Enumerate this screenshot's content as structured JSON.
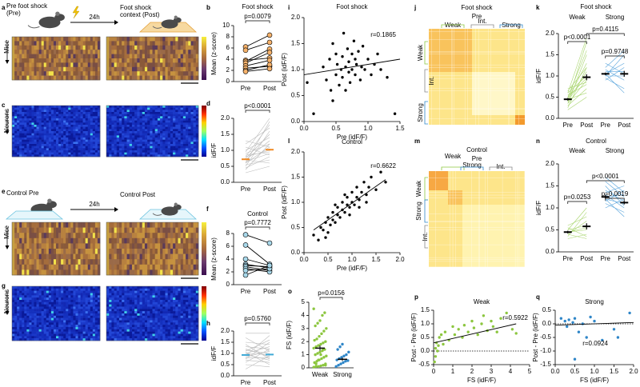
{
  "chart_data": [
    {
      "type": "paired",
      "panel_label": "b",
      "title": "Foot shock",
      "ylabel": "Mean (z-score)",
      "categories": [
        "Pre",
        "Post"
      ],
      "ylim": [
        0,
        10
      ],
      "yticks": [
        0,
        2,
        4,
        6,
        8,
        10
      ],
      "markers": true,
      "series": [
        {
          "color": "#f6b26b",
          "line_color": "#000000",
          "pre": [
            6.2,
            5.6,
            3.8,
            3.6,
            3.3,
            2.8,
            2.4,
            2.0,
            1.8
          ],
          "post": [
            8.3,
            7.0,
            4.2,
            5.8,
            5.2,
            3.8,
            2.7,
            3.0,
            2.3
          ]
        }
      ],
      "annotations": [
        "p=0.0079"
      ]
    },
    {
      "type": "paired",
      "panel_label": "d",
      "ylabel": "idF/F",
      "categories": [
        "Pre",
        "Post"
      ],
      "ylim": [
        0,
        2
      ],
      "yticks": [
        {
          "value": 0,
          "label": "0.0"
        },
        0.5,
        {
          "value": 1,
          "label": "1.0"
        },
        1.5,
        {
          "value": 2,
          "label": "2.0"
        }
      ],
      "markers": false,
      "series": [
        {
          "color": "#f08a24",
          "line_color": "#bbbbbb",
          "pre": [
            0.3,
            0.4,
            0.45,
            0.5,
            0.55,
            0.6,
            0.6,
            0.65,
            0.7,
            0.7,
            0.75,
            0.8,
            0.8,
            0.85,
            0.9,
            0.95,
            1.0,
            1.1,
            1.2,
            1.3
          ],
          "post": [
            0.5,
            1.2,
            0.8,
            1.6,
            0.7,
            1.1,
            1.9,
            0.9,
            1.3,
            0.6,
            1.5,
            1.0,
            1.8,
            0.95,
            1.2,
            2.0,
            1.4,
            0.85,
            1.7,
            1.1
          ],
          "mean": [
            0.72,
            1.02
          ],
          "sem": [
            0.02,
            0.03
          ]
        }
      ],
      "annotations": [
        "p<0.0001"
      ]
    },
    {
      "type": "paired",
      "panel_label": "f",
      "title": "Control",
      "ylabel": "Mean (z-score)",
      "categories": [
        "Pre",
        "Post"
      ],
      "ylim": [
        0,
        8
      ],
      "yticks": [
        0,
        2,
        4,
        6,
        8
      ],
      "markers": true,
      "series": [
        {
          "color": "#a8d8ea",
          "line_color": "#000000",
          "pre": [
            7.8,
            6.2,
            4.0,
            3.2,
            3.0,
            2.8,
            2.5,
            2.2,
            1.5
          ],
          "post": [
            6.5,
            3.2,
            3.0,
            2.6,
            2.8,
            2.2,
            2.0,
            2.5,
            3.0
          ]
        }
      ],
      "annotations": [
        "p=0.7772"
      ]
    },
    {
      "type": "paired",
      "panel_label": "h",
      "ylabel": "idF/F",
      "categories": [
        "Pre",
        "Post"
      ],
      "ylim": [
        0,
        2
      ],
      "yticks": [
        {
          "value": 0,
          "label": "0.0"
        },
        0.5,
        {
          "value": 1,
          "label": "1.0"
        },
        1.5,
        {
          "value": 2,
          "label": "2.0"
        }
      ],
      "markers": false,
      "series": [
        {
          "color": "#3fa9d6",
          "line_color": "#bbbbbb",
          "pre": [
            0.3,
            0.5,
            0.6,
            0.7,
            0.75,
            0.8,
            0.85,
            0.9,
            0.95,
            1.0,
            1.0,
            1.05,
            1.1,
            1.15,
            1.2,
            1.3,
            1.4,
            1.5,
            1.7,
            1.9
          ],
          "post": [
            0.9,
            0.4,
            1.2,
            0.6,
            1.5,
            0.8,
            1.1,
            1.8,
            0.7,
            1.3,
            0.95,
            0.5,
            1.6,
            1.0,
            0.85,
            1.2,
            0.75,
            1.4,
            1.1,
            1.9
          ],
          "mean": [
            0.93,
            0.95
          ],
          "sem": [
            0.02,
            0.02
          ]
        }
      ],
      "annotations": [
        "p=0.5760"
      ]
    },
    {
      "type": "scatter",
      "panel_label": "i",
      "title": "Foot shock",
      "xlabel": "Pre (idF/F)",
      "ylabel": "Post (idF/F)",
      "color": "#000000",
      "x": [
        0.15,
        0.3,
        0.35,
        0.4,
        0.42,
        0.45,
        0.5,
        0.5,
        0.52,
        0.55,
        0.58,
        0.6,
        0.6,
        0.62,
        0.65,
        0.65,
        0.68,
        0.7,
        0.7,
        0.72,
        0.75,
        0.75,
        0.78,
        0.8,
        0.8,
        0.82,
        0.85,
        0.88,
        0.9,
        0.92,
        0.95,
        1.0,
        1.05,
        1.1,
        1.15,
        1.2,
        1.3,
        1.42,
        0.05,
        0.45
      ],
      "y": [
        0.15,
        1.05,
        0.8,
        1.2,
        0.6,
        1.5,
        0.9,
        1.3,
        1.1,
        0.7,
        1.0,
        1.25,
        0.85,
        1.7,
        1.05,
        0.6,
        1.4,
        0.95,
        1.15,
        0.75,
        1.3,
        1.0,
        1.55,
        0.9,
        1.2,
        1.1,
        1.35,
        0.8,
        1.05,
        1.45,
        1.0,
        1.2,
        0.9,
        1.1,
        1.3,
        1.0,
        0.85,
        0.15,
        0.75,
        0.4
      ],
      "fit_x": [
        0,
        1.5
      ],
      "fit_y": [
        0.9,
        1.2
      ],
      "xlim": [
        0,
        1.5
      ],
      "xticks": [
        {
          "value": 0,
          "label": "0.0"
        },
        0.5,
        {
          "value": 1,
          "label": "1.0"
        },
        1.5
      ],
      "ylim": [
        0,
        2
      ],
      "yticks": [
        {
          "value": 0,
          "label": "0.0"
        },
        0.5,
        {
          "value": 1,
          "label": "1.0"
        },
        1.5,
        {
          "value": 2,
          "label": "2.0"
        }
      ],
      "annotations": [
        "r=0.1865"
      ]
    },
    {
      "type": "scatter",
      "panel_label": "l",
      "title": "Control",
      "xlabel": "Pre (idF/F)",
      "ylabel": "Post (idF/F)",
      "color": "#000000",
      "x": [
        0.2,
        0.3,
        0.35,
        0.4,
        0.45,
        0.5,
        0.5,
        0.55,
        0.6,
        0.6,
        0.65,
        0.7,
        0.7,
        0.75,
        0.8,
        0.8,
        0.85,
        0.9,
        0.9,
        0.95,
        1.0,
        1.0,
        1.05,
        1.1,
        1.1,
        1.15,
        1.2,
        1.25,
        1.3,
        1.35,
        1.4,
        1.5,
        1.6,
        1.7,
        0.65,
        0.85,
        0.95,
        1.15,
        0.45,
        1.3
      ],
      "y": [
        0.35,
        0.25,
        0.5,
        0.45,
        0.6,
        0.4,
        0.7,
        0.55,
        0.65,
        0.8,
        0.6,
        0.75,
        0.9,
        0.7,
        0.85,
        1.0,
        0.8,
        0.95,
        1.1,
        0.9,
        1.0,
        1.2,
        0.95,
        1.1,
        1.3,
        1.05,
        1.2,
        1.4,
        1.15,
        1.3,
        1.5,
        1.25,
        1.6,
        1.4,
        0.95,
        1.15,
        0.75,
        0.9,
        0.3,
        1.0
      ],
      "fit_x": [
        0.2,
        1.7
      ],
      "fit_y": [
        0.45,
        1.45
      ],
      "xlim": [
        0,
        2
      ],
      "xticks": [
        {
          "value": 0,
          "label": "0.0"
        },
        0.5,
        {
          "value": 1,
          "label": "1.0"
        },
        1.5,
        {
          "value": 2,
          "label": "2.0"
        }
      ],
      "ylim": [
        0,
        2
      ],
      "yticks": [
        {
          "value": 0,
          "label": "0.0"
        },
        0.5,
        {
          "value": 1,
          "label": "1.0"
        },
        1.5,
        {
          "value": 2,
          "label": "2.0"
        }
      ],
      "annotations": [
        "r=0.6622"
      ]
    },
    {
      "type": "strip",
      "panel_label": "o",
      "ylabel": "FS (idF/F)",
      "categories": [
        "Weak",
        "Strong"
      ],
      "ylim": [
        0,
        5
      ],
      "yticks": [
        0,
        1,
        2,
        3,
        4,
        5
      ],
      "series": [
        {
          "color": "#8cc63f",
          "values": [
            0.05,
            0.1,
            0.1,
            0.15,
            0.2,
            0.3,
            0.4,
            0.5,
            0.6,
            0.7,
            0.8,
            0.9,
            1.0,
            1.1,
            1.2,
            1.3,
            1.4,
            1.5,
            1.6,
            1.7,
            1.8,
            1.9,
            2.0,
            2.1,
            2.2,
            2.4,
            2.6,
            2.8,
            3.0,
            3.2,
            3.4,
            3.6,
            4.0,
            4.2,
            4.5,
            0.3,
            0.6,
            1.0,
            1.4,
            0.2
          ],
          "mean": 1.5,
          "sem": 0.2
        },
        {
          "color": "#2f86c8",
          "values": [
            0.1,
            0.2,
            0.3,
            0.4,
            0.5,
            0.55,
            0.6,
            0.7,
            0.8,
            0.9,
            1.0,
            1.2,
            1.4,
            1.6,
            1.8
          ],
          "mean": 0.65,
          "sem": 0.12
        }
      ],
      "annotations": [
        "p=0.0156"
      ]
    },
    {
      "type": "scatter",
      "panel_label": "p",
      "title": "Weak",
      "xlabel": "FS (idF/F)",
      "ylabel": "Post - Pre (idF/F)",
      "color": "#8cc63f",
      "zero_line": true,
      "x": [
        0.05,
        0.1,
        0.1,
        0.15,
        0.2,
        0.25,
        0.3,
        0.4,
        0.5,
        0.6,
        0.8,
        1.0,
        1.1,
        1.3,
        1.5,
        1.6,
        1.8,
        2.0,
        2.1,
        2.3,
        2.5,
        2.6,
        2.8,
        3.0,
        3.1,
        3.3,
        3.5,
        3.8,
        4.1,
        4.3
      ],
      "y": [
        -0.4,
        -0.2,
        0.1,
        0.3,
        0.0,
        0.2,
        0.5,
        0.6,
        0.25,
        0.7,
        0.4,
        0.9,
        0.6,
        0.8,
        0.5,
        0.95,
        0.7,
        1.1,
        0.85,
        0.6,
        1.0,
        1.3,
        0.75,
        1.1,
        0.9,
        0.7,
        1.2,
        1.4,
        0.8,
        0.65
      ],
      "fit_x": [
        0,
        4.3
      ],
      "fit_y": [
        0.3,
        1.0
      ],
      "xlim": [
        0,
        5
      ],
      "xticks": [
        0,
        1,
        2,
        3,
        4,
        5
      ],
      "ylim": [
        -0.5,
        1.5
      ],
      "yticks": [
        -0.5,
        {
          "value": 0,
          "label": "0.0"
        },
        0.5,
        {
          "value": 1,
          "label": "1.0"
        },
        1.5
      ],
      "annotations": [
        "r=0.5922"
      ]
    },
    {
      "type": "scatter",
      "panel_label": "q",
      "title": "Strong",
      "xlabel": "FS (idF/F)",
      "ylabel": "Post - Pre (idF/F)",
      "color": "#2f86c8",
      "zero_line": true,
      "x": [
        0.15,
        0.25,
        0.3,
        0.35,
        0.45,
        0.5,
        0.5,
        0.6,
        0.7,
        0.8,
        0.9,
        1.0,
        1.2,
        1.5,
        1.6,
        1.9
      ],
      "y": [
        0.2,
        0.1,
        -0.1,
        0.15,
        0.05,
        -1.3,
        0.2,
        -0.3,
        0.0,
        -0.5,
        0.25,
        0.1,
        -0.6,
        -0.2,
        -0.5,
        0.4
      ],
      "fit_x": [
        0,
        2
      ],
      "fit_y": [
        -0.05,
        0.05
      ],
      "xlim": [
        0,
        2
      ],
      "xticks": [
        {
          "value": 0,
          "label": "0.0"
        },
        0.5,
        {
          "value": 1,
          "label": "1.0"
        },
        1.5,
        {
          "value": 2,
          "label": "2.0"
        }
      ],
      "ylim": [
        -1.5,
        0.5
      ],
      "yticks": [
        {
          "value": -1.5,
          "label": "-1.5"
        },
        {
          "value": -1,
          "label": "-1.0"
        },
        -0.5,
        {
          "value": 0,
          "label": "0.0"
        },
        0.5
      ],
      "annotations": [
        "r=0.0924"
      ]
    },
    {
      "type": "paired",
      "panel_label": "k",
      "title": "Foot shock",
      "ylabel": "idF/F",
      "categories": [
        "Pre",
        "Post",
        "Pre",
        "Post"
      ],
      "ylim": [
        0,
        2
      ],
      "yticks": [
        {
          "value": 0,
          "label": "0.0"
        },
        0.5,
        {
          "value": 1,
          "label": "1.0"
        },
        1.5,
        {
          "value": 2,
          "label": "2.0"
        }
      ],
      "markers": false,
      "series": [
        {
          "name": "Weak",
          "color": "#000000",
          "legend_color": "#8cc63f",
          "line_color": "#a9d66f",
          "pre": [
            0.2,
            0.25,
            0.3,
            0.35,
            0.35,
            0.4,
            0.4,
            0.45,
            0.45,
            0.5,
            0.5,
            0.55,
            0.6,
            0.6,
            0.65,
            0.7
          ],
          "post": [
            0.5,
            1.2,
            0.7,
            1.5,
            0.9,
            1.1,
            1.8,
            0.6,
            1.3,
            0.95,
            1.6,
            0.8,
            1.0,
            1.9,
            1.2,
            0.85
          ],
          "mean": [
            0.45,
            0.97
          ],
          "sem": [
            0.03,
            0.07
          ]
        },
        {
          "name": "Strong",
          "color": "#000000",
          "legend_color": "#2f86c8",
          "line_color": "#5aa5dc",
          "pre": [
            0.9,
            0.95,
            1.0,
            1.0,
            1.05,
            1.05,
            1.1,
            1.15,
            1.2,
            1.3
          ],
          "post": [
            1.2,
            0.7,
            1.5,
            1.0,
            0.6,
            1.3,
            1.1,
            0.9,
            1.6,
            1.05
          ],
          "mean": [
            1.05,
            1.05
          ],
          "sem": [
            0.03,
            0.07
          ]
        }
      ],
      "annotations": [
        "p<0.0001",
        "p=0.4115",
        "p=0.9748"
      ]
    },
    {
      "type": "paired",
      "panel_label": "n",
      "title": "Control",
      "ylabel": "idF/F",
      "categories": [
        "Pre",
        "Post",
        "Pre",
        "Post"
      ],
      "ylim": [
        0,
        2
      ],
      "yticks": [
        {
          "value": 0,
          "label": "0.0"
        },
        0.5,
        {
          "value": 1,
          "label": "1.0"
        },
        1.5,
        {
          "value": 2,
          "label": "2.0"
        }
      ],
      "markers": false,
      "series": [
        {
          "name": "Weak",
          "color": "#000000",
          "legend_color": "#8cc63f",
          "line_color": "#a9d66f",
          "pre": [
            0.3,
            0.35,
            0.4,
            0.4,
            0.45,
            0.5,
            0.5,
            0.55,
            0.6,
            0.45
          ],
          "post": [
            0.4,
            0.9,
            0.3,
            0.7,
            0.5,
            1.0,
            0.6,
            0.35,
            0.8,
            0.55
          ],
          "mean": [
            0.45,
            0.58
          ],
          "sem": [
            0.03,
            0.07
          ]
        },
        {
          "name": "Strong",
          "color": "#000000",
          "legend_color": "#2f86c8",
          "line_color": "#5aa5dc",
          "pre": [
            1.0,
            1.1,
            1.15,
            1.2,
            1.2,
            1.25,
            1.3,
            1.35,
            1.4,
            1.5,
            1.6,
            1.7
          ],
          "post": [
            1.2,
            0.9,
            1.4,
            1.1,
            0.8,
            1.3,
            1.0,
            1.5,
            1.15,
            1.05,
            1.25,
            1.35
          ],
          "mean": [
            1.25,
            1.12
          ],
          "sem": [
            0.04,
            0.04
          ]
        }
      ],
      "annotations": [
        "p=0.0253",
        "p<0.0001",
        "p=0.0019"
      ]
    }
  ],
  "images": [
    {
      "panel_label": "a",
      "captions": [
        "Pre foot shock",
        "(Pre)"
      ],
      "arrow_label": "24h",
      "captions_right": [
        "Foot shock",
        "context (Post)"
      ],
      "ylabel": "Mice"
    },
    {
      "panel_label": "c",
      "ylabel": "Neurons"
    },
    {
      "panel_label": "e",
      "captions": [
        "Control Pre"
      ],
      "arrow_label": "24h",
      "captions_right": [
        "Control Post"
      ],
      "ylabel": "Mice"
    },
    {
      "panel_label": "g",
      "ylabel": "Neurons"
    },
    {
      "panel_label": "j",
      "title": "Foot shock",
      "subtitle": "Pre",
      "top_labels": [
        "Weak",
        "Int.",
        "Strong"
      ],
      "side_labels": [
        "Weak",
        "Int.",
        "Strong"
      ]
    },
    {
      "panel_label": "m",
      "title": "Control",
      "subtitle": "Pre",
      "top_labels": [
        "Weak",
        "Strong",
        "Int."
      ],
      "side_labels": [
        "Weak",
        "Strong",
        "Int."
      ]
    }
  ]
}
